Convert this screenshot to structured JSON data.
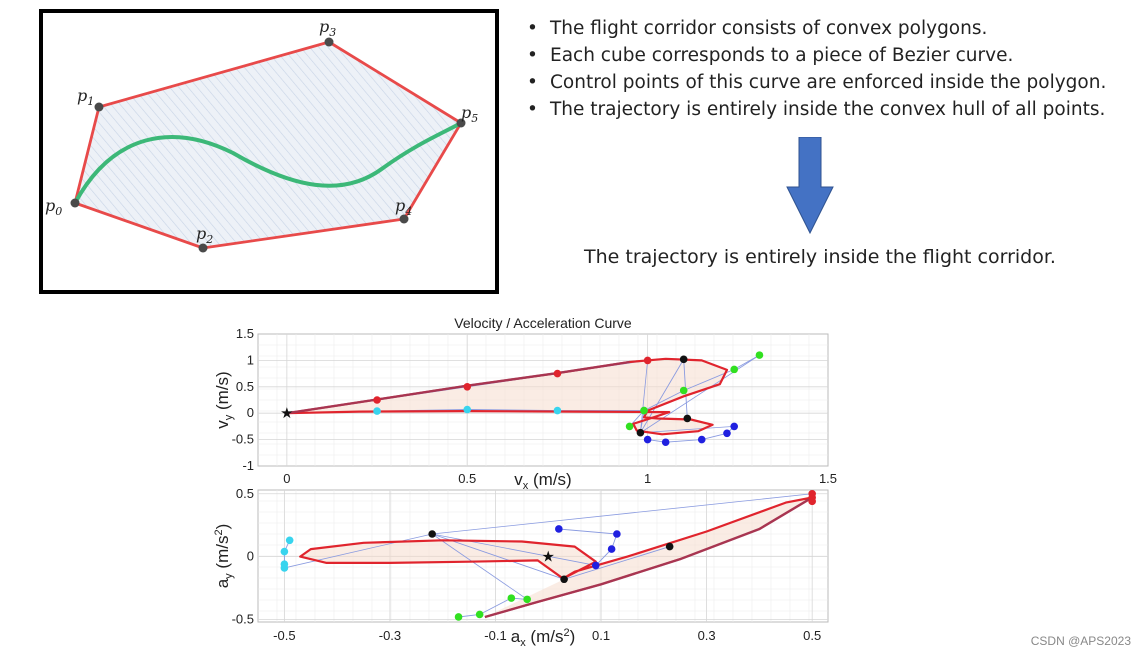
{
  "polygon_panel": {
    "points": [
      {
        "label": "p",
        "sub": "0"
      },
      {
        "label": "p",
        "sub": "1"
      },
      {
        "label": "p",
        "sub": "3"
      },
      {
        "label": "p",
        "sub": "5"
      },
      {
        "label": "p",
        "sub": "4"
      },
      {
        "label": "p",
        "sub": "2"
      }
    ],
    "colors": {
      "edge": "#e84a4a",
      "fill": "#edf1f7",
      "hatch": "#c7d3e6",
      "curve": "#3cb878",
      "point": "#4a4a4a"
    }
  },
  "bullets": [
    "The flight corridor consists of convex polygons.",
    "Each cube corresponds to a piece of Bezier curve.",
    "Control points of this curve are enforced inside the polygon.",
    "The trajectory is entirely inside the convex hull of all points."
  ],
  "arrow": {
    "icon": "down-arrow-icon",
    "color": "#4472c4"
  },
  "conclusion": "The trajectory is entirely inside the flight corridor.",
  "watermark": "CSDN @APS2023",
  "chart_data": [
    {
      "type": "scatter",
      "title": "Velocity / Acceleration Curve",
      "xlabel": "v",
      "xlabel_sub": "x",
      "xlabel_unit": " (m/s)",
      "ylabel": "v",
      "ylabel_sub": "y",
      "ylabel_unit": " (m/s)",
      "xlim": [
        -0.08,
        1.5
      ],
      "ylim": [
        -1,
        1.5
      ],
      "xticks": [
        0,
        0.5,
        1,
        1.5
      ],
      "xtick_labels": [
        "0",
        "0.5",
        "1",
        "1.5"
      ],
      "yticks": [
        -1,
        -0.5,
        0,
        0.5,
        1,
        1.5
      ],
      "ytick_labels": [
        "-1",
        "-0.5",
        "0",
        "0.5",
        "1",
        "1.5"
      ],
      "grid": true,
      "origin_marker": [
        0,
        0
      ],
      "series": [
        {
          "color": "#e0242d",
          "x": [
            0.25,
            0.5,
            0.75,
            1.0
          ],
          "y": [
            0.25,
            0.5,
            0.75,
            1.0
          ]
        },
        {
          "color": "#38d4ee",
          "x": [
            0.25,
            0.5,
            0.75,
            0.99
          ],
          "y": [
            0.04,
            0.07,
            0.05,
            0.05
          ]
        },
        {
          "color": "#31e020",
          "x": [
            0.95,
            0.99,
            1.1,
            1.24,
            1.31
          ],
          "y": [
            -0.25,
            0.05,
            0.43,
            0.83,
            1.1
          ]
        },
        {
          "color": "#2020e0",
          "x": [
            1.0,
            1.05,
            1.15,
            1.22,
            1.24
          ],
          "y": [
            -0.5,
            -0.55,
            -0.5,
            -0.38,
            -0.25
          ]
        },
        {
          "color": "#111111",
          "x": [
            0.98,
            1.1,
            1.11
          ],
          "y": [
            -0.37,
            1.02,
            -0.1
          ]
        }
      ],
      "curve": {
        "color": "#e0242d",
        "x": [
          0,
          0.25,
          0.5,
          0.75,
          0.95,
          1.05,
          1.15,
          1.22,
          1.2,
          1.1,
          1.0,
          0.99,
          1.03,
          1.12,
          1.18,
          1.14,
          1.04,
          0.97,
          0.96,
          1.02,
          1.06,
          0.8,
          0.5,
          0.2,
          0
        ],
        "y": [
          0,
          0.26,
          0.52,
          0.76,
          0.97,
          1.03,
          1.0,
          0.82,
          0.55,
          0.32,
          0.05,
          -0.08,
          -0.1,
          -0.12,
          -0.22,
          -0.34,
          -0.4,
          -0.33,
          -0.2,
          -0.07,
          0.02,
          0.03,
          0.04,
          0.03,
          0
        ]
      }
    },
    {
      "type": "scatter",
      "xlabel": "a",
      "xlabel_sub": "x",
      "xlabel_unit": " (m/s",
      "xlabel_sup": "2",
      "xlabel_end": ")",
      "ylabel": "a",
      "ylabel_sub": "y",
      "ylabel_unit": " (m/s",
      "ylabel_sup": "2",
      "ylabel_end": ")",
      "xlim": [
        -0.55,
        0.53
      ],
      "ylim": [
        -0.52,
        0.53
      ],
      "xticks": [
        -0.5,
        -0.3,
        -0.1,
        0.1,
        0.3,
        0.5
      ],
      "xtick_labels": [
        "-0.5",
        "-0.3",
        "-0.1",
        "0.1",
        "0.3",
        "0.5"
      ],
      "yticks": [
        -0.5,
        0,
        0.5
      ],
      "ytick_labels": [
        "-0.5",
        "0",
        "0.5"
      ],
      "grid": true,
      "origin_marker": [
        0,
        0
      ],
      "series": [
        {
          "color": "#e0242d",
          "x": [
            0.5,
            0.5,
            0.5
          ],
          "y": [
            0.44,
            0.47,
            0.5
          ]
        },
        {
          "color": "#38d4ee",
          "x": [
            -0.49,
            -0.5,
            -0.5,
            -0.5
          ],
          "y": [
            0.13,
            0.04,
            -0.06,
            -0.09
          ]
        },
        {
          "color": "#31e020",
          "x": [
            -0.17,
            -0.13,
            -0.07,
            -0.04
          ],
          "y": [
            -0.48,
            -0.46,
            -0.33,
            -0.34
          ]
        },
        {
          "color": "#2020e0",
          "x": [
            0.02,
            0.13,
            0.12,
            0.09
          ],
          "y": [
            0.22,
            0.18,
            0.06,
            -0.07
          ]
        },
        {
          "color": "#111111",
          "x": [
            -0.22,
            0.03,
            0.23
          ],
          "y": [
            0.18,
            -0.18,
            0.08
          ]
        }
      ],
      "curve": {
        "color": "#e0242d",
        "x": [
          -0.12,
          -0.02,
          0.1,
          0.25,
          0.4,
          0.5,
          0.45,
          0.3,
          0.15,
          0.05,
          0.03,
          0.09,
          0.05,
          -0.05,
          -0.2,
          -0.35,
          -0.45,
          -0.47,
          -0.42,
          -0.3,
          -0.15,
          -0.02,
          0.03
        ],
        "y": [
          -0.48,
          -0.36,
          -0.22,
          -0.02,
          0.22,
          0.47,
          0.43,
          0.2,
          0.0,
          -0.12,
          -0.17,
          -0.04,
          0.08,
          0.12,
          0.13,
          0.11,
          0.06,
          0.0,
          -0.05,
          -0.05,
          -0.04,
          -0.03,
          -0.18
        ]
      }
    }
  ]
}
